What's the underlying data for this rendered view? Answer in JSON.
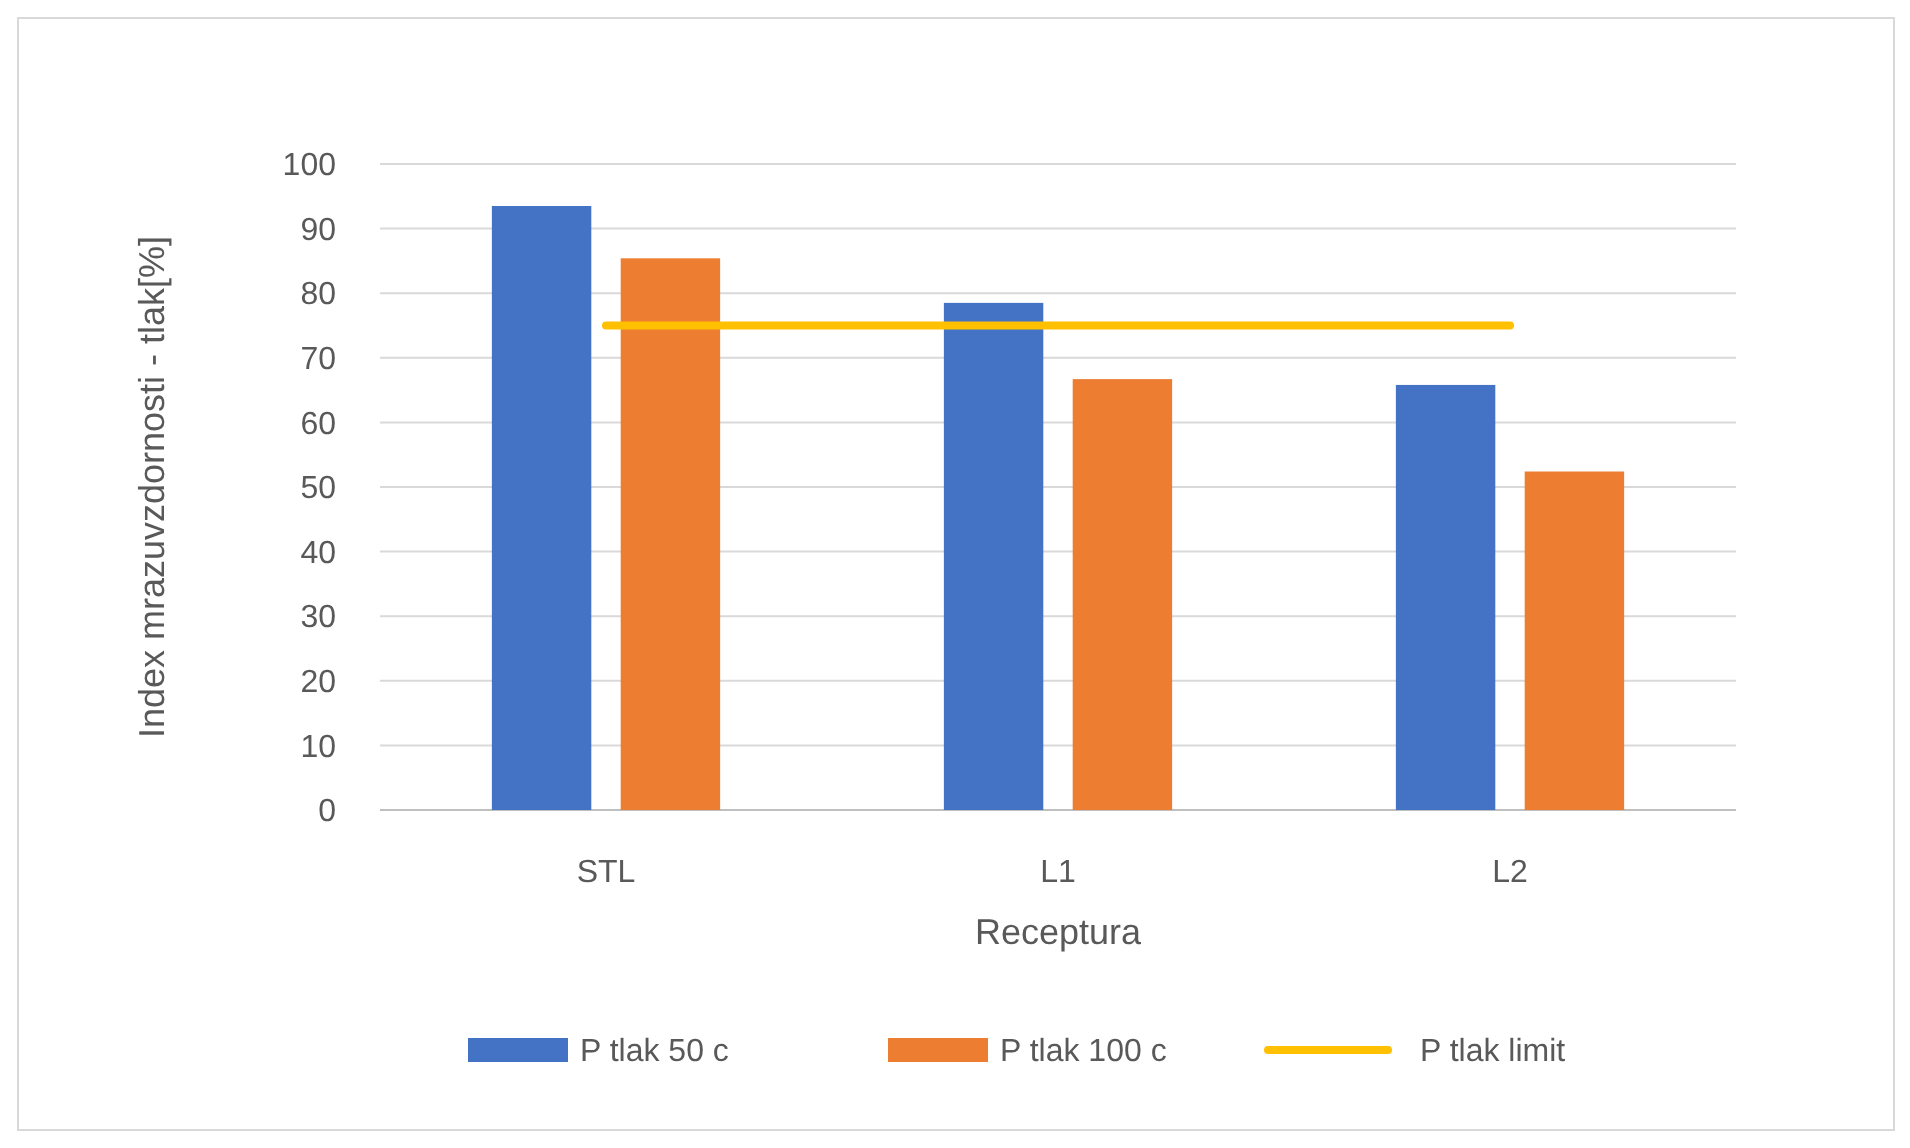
{
  "chart_data": {
    "type": "bar",
    "xlabel": "Receptura",
    "ylabel": "Index mrazuvzdornosti - tlak[%]",
    "categories": [
      "STL",
      "L1",
      "L2"
    ],
    "series": [
      {
        "name": "P tlak 50 c",
        "color": "#4472c4",
        "values": [
          93.5,
          78.5,
          65.8
        ]
      },
      {
        "name": "P tlak 100 c",
        "color": "#ed7d31",
        "values": [
          85.4,
          66.7,
          52.4
        ]
      },
      {
        "name": "P tlak limit",
        "type": "line",
        "color": "#ffc000",
        "values": [
          75,
          75,
          75
        ]
      }
    ],
    "ylim": [
      0,
      100
    ],
    "yticks": [
      0,
      10,
      20,
      30,
      40,
      50,
      60,
      70,
      80,
      90,
      100
    ],
    "grid": "y",
    "legend": "bottom"
  }
}
